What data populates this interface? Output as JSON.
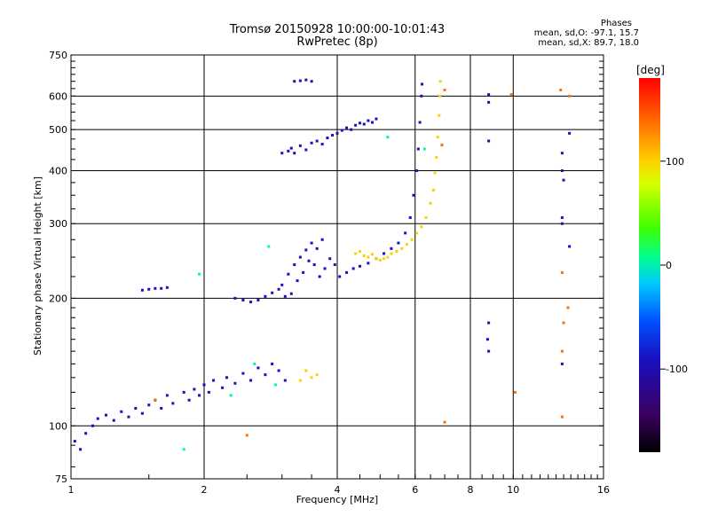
{
  "header": {
    "title": "Tromsø 20150928 10:00:00-10:01:43",
    "subtitle": "RwPretec (8p)"
  },
  "stats": {
    "heading": "Phases",
    "line_o": "mean, sd,O: -97.1, 15.7",
    "line_x": "mean, sd,X: 89.7, 18.0"
  },
  "chart_data": {
    "type": "scatter",
    "xlabel": "Frequency [MHz]",
    "ylabel": "Stationary phase Virtual Height [km]",
    "x_scale": "log",
    "y_scale": "log",
    "xlim": [
      1,
      16
    ],
    "ylim": [
      75,
      750
    ],
    "x_ticks": [
      1,
      2,
      4,
      6,
      8,
      10,
      16
    ],
    "y_ticks": [
      75,
      100,
      200,
      300,
      400,
      500,
      600,
      750
    ],
    "grid": true,
    "colorbar": {
      "label": "[deg]",
      "min": -180,
      "max": 180,
      "ticks": [
        -100,
        0,
        100
      ],
      "colors": [
        "#000000",
        "#3a0060",
        "#1a10c0",
        "#0050ff",
        "#00c8ff",
        "#00ff90",
        "#40ff00",
        "#d8ff00",
        "#ffd000",
        "#ff7000",
        "#ff0000"
      ]
    },
    "series": [
      {
        "color_phase": -110,
        "points": [
          [
            1.02,
            92
          ],
          [
            1.05,
            88
          ],
          [
            1.08,
            96
          ],
          [
            1.12,
            100
          ],
          [
            1.15,
            104
          ],
          [
            1.2,
            106
          ],
          [
            1.25,
            103
          ],
          [
            1.3,
            108
          ],
          [
            1.35,
            105
          ],
          [
            1.4,
            110
          ],
          [
            1.45,
            107
          ],
          [
            1.5,
            112
          ],
          [
            1.55,
            115
          ],
          [
            1.6,
            110
          ],
          [
            1.65,
            118
          ],
          [
            1.7,
            113
          ],
          [
            1.8,
            120
          ],
          [
            1.85,
            115
          ],
          [
            1.9,
            122
          ],
          [
            1.95,
            118
          ],
          [
            2.0,
            125
          ],
          [
            2.05,
            120
          ],
          [
            2.1,
            128
          ],
          [
            2.2,
            123
          ],
          [
            2.25,
            130
          ],
          [
            2.35,
            126
          ],
          [
            2.45,
            133
          ],
          [
            2.55,
            128
          ],
          [
            2.65,
            137
          ],
          [
            2.75,
            132
          ],
          [
            2.85,
            140
          ],
          [
            2.95,
            135
          ],
          [
            3.05,
            128
          ],
          [
            1.45,
            209
          ],
          [
            1.5,
            210
          ],
          [
            1.55,
            211
          ],
          [
            1.6,
            211
          ],
          [
            1.65,
            212
          ],
          [
            3.0,
            440
          ],
          [
            3.1,
            445
          ],
          [
            3.15,
            452
          ],
          [
            3.2,
            440
          ],
          [
            3.3,
            458
          ],
          [
            3.4,
            448
          ],
          [
            3.5,
            465
          ],
          [
            3.6,
            470
          ],
          [
            3.7,
            462
          ],
          [
            3.8,
            478
          ],
          [
            3.9,
            485
          ],
          [
            4.0,
            490
          ],
          [
            4.1,
            498
          ],
          [
            4.2,
            505
          ],
          [
            4.3,
            500
          ],
          [
            4.4,
            512
          ],
          [
            4.5,
            518
          ],
          [
            4.6,
            515
          ],
          [
            4.7,
            525
          ],
          [
            4.8,
            520
          ],
          [
            4.9,
            530
          ],
          [
            3.2,
            650
          ],
          [
            3.3,
            652
          ],
          [
            3.4,
            655
          ],
          [
            3.5,
            650
          ]
        ]
      },
      {
        "color_phase": -120,
        "points": [
          [
            2.35,
            200
          ],
          [
            2.45,
            198
          ],
          [
            2.55,
            196
          ],
          [
            2.65,
            198
          ],
          [
            2.75,
            202
          ],
          [
            2.85,
            206
          ],
          [
            2.95,
            210
          ],
          [
            3.05,
            202
          ],
          [
            3.15,
            205
          ],
          [
            3.25,
            220
          ],
          [
            3.35,
            230
          ],
          [
            3.45,
            245
          ],
          [
            3.55,
            240
          ],
          [
            3.65,
            225
          ],
          [
            3.75,
            235
          ],
          [
            3.85,
            248
          ],
          [
            3.95,
            240
          ],
          [
            4.05,
            225
          ],
          [
            4.2,
            230
          ],
          [
            4.35,
            235
          ],
          [
            4.5,
            238
          ],
          [
            4.7,
            242
          ],
          [
            4.9,
            248
          ],
          [
            5.1,
            255
          ],
          [
            5.3,
            262
          ],
          [
            5.5,
            270
          ],
          [
            5.7,
            285
          ],
          [
            5.85,
            310
          ],
          [
            5.95,
            350
          ],
          [
            6.05,
            400
          ],
          [
            6.1,
            450
          ],
          [
            6.15,
            520
          ],
          [
            6.2,
            600
          ],
          [
            6.22,
            640
          ],
          [
            3.2,
            240
          ],
          [
            3.3,
            250
          ],
          [
            3.4,
            260
          ],
          [
            3.5,
            270
          ],
          [
            3.6,
            262
          ],
          [
            3.7,
            275
          ],
          [
            3.0,
            215
          ],
          [
            3.1,
            228
          ]
        ]
      },
      {
        "color_phase": 95,
        "points": [
          [
            4.4,
            255
          ],
          [
            4.5,
            258
          ],
          [
            4.6,
            252
          ],
          [
            4.7,
            250
          ],
          [
            4.8,
            254
          ],
          [
            4.9,
            248
          ],
          [
            5.0,
            246
          ],
          [
            5.1,
            248
          ],
          [
            5.2,
            250
          ],
          [
            5.3,
            255
          ],
          [
            5.45,
            258
          ],
          [
            5.6,
            262
          ],
          [
            5.75,
            268
          ],
          [
            5.9,
            275
          ],
          [
            6.05,
            285
          ],
          [
            6.2,
            295
          ],
          [
            6.35,
            310
          ],
          [
            6.5,
            335
          ],
          [
            6.6,
            360
          ],
          [
            6.65,
            395
          ],
          [
            6.7,
            430
          ],
          [
            6.75,
            480
          ],
          [
            6.8,
            540
          ],
          [
            6.82,
            600
          ],
          [
            6.84,
            650
          ],
          [
            3.5,
            130
          ],
          [
            3.6,
            132
          ],
          [
            3.4,
            135
          ],
          [
            3.3,
            128
          ]
        ]
      },
      {
        "color_phase": 10,
        "points": [
          [
            1.8,
            88
          ],
          [
            2.6,
            140
          ],
          [
            2.9,
            125
          ],
          [
            2.3,
            118
          ],
          [
            6.3,
            450
          ],
          [
            5.2,
            480
          ],
          [
            1.95,
            228
          ],
          [
            2.8,
            265
          ]
        ]
      },
      {
        "color_phase": 150,
        "points": [
          [
            1.55,
            115
          ],
          [
            2.5,
            95
          ],
          [
            6.9,
            460
          ],
          [
            7.0,
            620
          ],
          [
            12.8,
            620
          ],
          [
            13.4,
            600
          ],
          [
            12.9,
            230
          ],
          [
            13.3,
            190
          ],
          [
            13.0,
            175
          ],
          [
            12.9,
            150
          ],
          [
            10.1,
            120
          ],
          [
            12.9,
            105
          ],
          [
            7.0,
            102
          ],
          [
            9.9,
            605
          ]
        ]
      },
      {
        "color_phase": -105,
        "points": [
          [
            8.8,
            605
          ],
          [
            8.8,
            580
          ],
          [
            8.8,
            470
          ],
          [
            8.8,
            175
          ],
          [
            8.75,
            160
          ],
          [
            8.8,
            150
          ],
          [
            12.9,
            440
          ],
          [
            12.9,
            400
          ],
          [
            12.9,
            310
          ],
          [
            12.9,
            300
          ],
          [
            13.4,
            265
          ],
          [
            12.9,
            140
          ],
          [
            13.4,
            490
          ],
          [
            13.0,
            380
          ]
        ]
      }
    ]
  }
}
